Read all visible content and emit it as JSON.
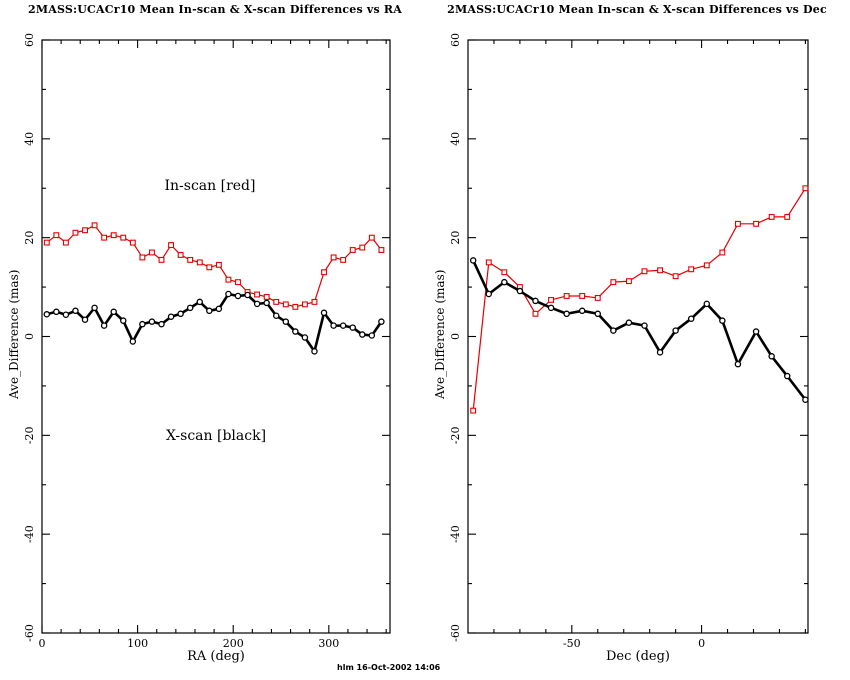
{
  "footer": {
    "timestamp": "hlm 16-Oct-2002 14:06"
  },
  "colors": {
    "in_scan_red": "#e60000",
    "x_scan_black": "#000000",
    "frame": "#000000"
  },
  "chart_data": [
    {
      "type": "line",
      "title": "2MASS:UCACr10 Mean In-scan & X-scan Differences vs RA",
      "xlabel": "RA (deg)",
      "ylabel": "Ave_Difference (mas)",
      "xlim": [
        0,
        364
      ],
      "ylim": [
        -60,
        60
      ],
      "x_major_ticks": [
        0,
        100,
        200,
        300
      ],
      "x_minor_step": 20,
      "y_major_ticks": [
        -60,
        -40,
        -20,
        0,
        20,
        40,
        60
      ],
      "y_minor_step": 10,
      "grid": false,
      "legend_position": "in-plot text annotations",
      "annotations": [
        {
          "text": "In-scan [red]",
          "x": 176,
          "y": 30
        },
        {
          "text": "X-scan [black]",
          "x": 182,
          "y": -21
        }
      ],
      "series": [
        {
          "name": "In-scan",
          "color": "#e60000",
          "marker": "square",
          "line_width": 1.2,
          "x": [
            5,
            15,
            25,
            35,
            45,
            55,
            65,
            75,
            85,
            95,
            105,
            115,
            125,
            135,
            145,
            155,
            165,
            175,
            185,
            195,
            205,
            215,
            225,
            235,
            245,
            255,
            265,
            275,
            285,
            295,
            305,
            315,
            325,
            335,
            345,
            355
          ],
          "values": [
            19,
            20.5,
            19,
            21,
            21.5,
            22.5,
            20,
            20.5,
            20,
            19,
            16,
            17,
            15.5,
            18.5,
            16.5,
            15.5,
            15,
            14,
            14.5,
            11.5,
            11,
            9,
            8.5,
            8,
            7,
            6.5,
            6,
            6.5,
            7,
            13,
            16,
            15.5,
            17.5,
            18,
            20,
            17.5
          ]
        },
        {
          "name": "X-scan",
          "color": "#000000",
          "marker": "circle",
          "line_width": 2.6,
          "x": [
            5,
            15,
            25,
            35,
            45,
            55,
            65,
            75,
            85,
            95,
            105,
            115,
            125,
            135,
            145,
            155,
            165,
            175,
            185,
            195,
            205,
            215,
            225,
            235,
            245,
            255,
            265,
            275,
            285,
            295,
            305,
            315,
            325,
            335,
            345,
            355
          ],
          "values": [
            4.5,
            5,
            4.4,
            5.2,
            3.4,
            5.8,
            2.2,
            5,
            3.2,
            -1,
            2.5,
            3,
            2.5,
            4,
            4.6,
            5.8,
            7,
            5.2,
            5.6,
            8.6,
            8.2,
            8.4,
            6.6,
            6.8,
            4.2,
            3,
            1,
            -0.2,
            -3,
            4.8,
            2.2,
            2.2,
            1.8,
            0.4,
            0.2,
            3
          ]
        }
      ]
    },
    {
      "type": "line",
      "title": "2MASS:UCACr10 Mean In-scan & X-scan Differences vs Dec",
      "xlabel": "Dec (deg)",
      "ylabel": "Ave_Difference (mas)",
      "xlim": [
        -90,
        41
      ],
      "ylim": [
        -60,
        60
      ],
      "x_major_ticks": [
        -50,
        0
      ],
      "x_minor_step": 10,
      "y_major_ticks": [
        -60,
        -40,
        -20,
        0,
        20,
        40,
        60
      ],
      "y_minor_step": 10,
      "grid": false,
      "legend_position": "none",
      "annotations": [],
      "series": [
        {
          "name": "In-scan",
          "color": "#e60000",
          "marker": "square",
          "line_width": 1.2,
          "x": [
            -88,
            -82,
            -76,
            -70,
            -64,
            -58,
            -52,
            -46,
            -40,
            -34,
            -28,
            -22,
            -16,
            -10,
            -4,
            2,
            8,
            14,
            21,
            27,
            33,
            40
          ],
          "values": [
            -15,
            15,
            13,
            10,
            4.6,
            7.4,
            8.2,
            8.2,
            7.8,
            11,
            11.2,
            13.2,
            13.4,
            12.2,
            13.6,
            14.4,
            17,
            22.8,
            22.8,
            24.2,
            24.2,
            30
          ]
        },
        {
          "name": "X-scan",
          "color": "#000000",
          "marker": "circle",
          "line_width": 2.6,
          "x": [
            -88,
            -82,
            -76,
            -70,
            -64,
            -58,
            -52,
            -46,
            -40,
            -34,
            -28,
            -22,
            -16,
            -10,
            -4,
            2,
            8,
            14,
            21,
            27,
            33,
            40
          ],
          "values": [
            15.4,
            8.6,
            11,
            9.2,
            7.2,
            5.8,
            4.6,
            5.2,
            4.6,
            1.2,
            2.8,
            2.2,
            -3.2,
            1.2,
            3.6,
            6.6,
            3.2,
            -5.6,
            1,
            -4,
            -8,
            -12.8
          ]
        }
      ]
    }
  ]
}
